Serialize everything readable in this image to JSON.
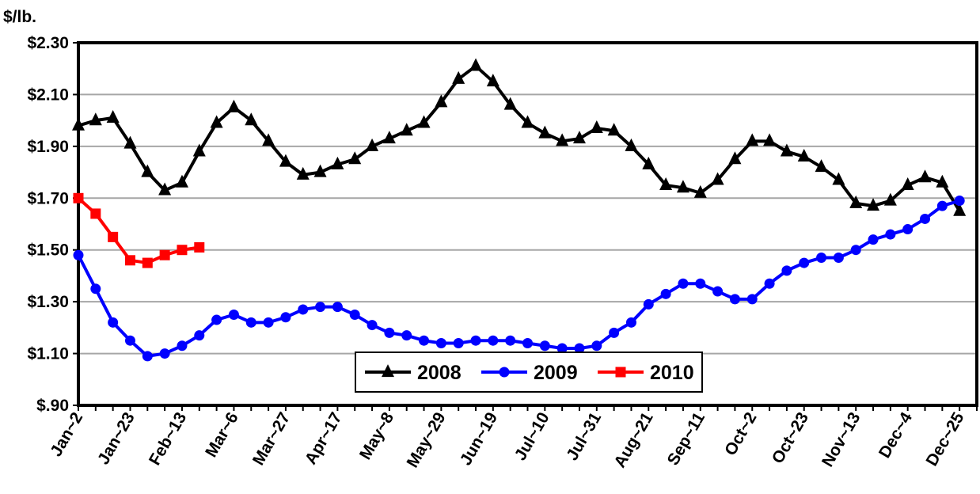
{
  "chart_data": {
    "type": "line",
    "ylabel": "$/lb.",
    "ylim": [
      0.9,
      2.3
    ],
    "yticks": [
      0.9,
      1.1,
      1.3,
      1.5,
      1.7,
      1.9,
      2.1,
      2.3
    ],
    "ytick_labels": [
      "$.90",
      "$1.10",
      "$1.30",
      "$1.50",
      "$1.70",
      "$1.90",
      "$2.10",
      "$2.30"
    ],
    "x_count": 52,
    "x_tick_labels": [
      "Jan~2",
      "Jan~23",
      "Feb~13",
      "Mar~6",
      "Mar~27",
      "Apr~17",
      "May~8",
      "May~29",
      "Jun~19",
      "Jul~10",
      "Jul~31",
      "Aug~21",
      "Sep~11",
      "Oct~2",
      "Oct~23",
      "Nov~13",
      "Dec~4",
      "Dec~25"
    ],
    "grid": true,
    "legend_position": "bottom-center",
    "series": [
      {
        "name": "2008",
        "color": "#000000",
        "marker": "triangle",
        "values": [
          1.98,
          2.0,
          2.01,
          1.91,
          1.8,
          1.73,
          1.76,
          1.88,
          1.99,
          2.05,
          2.0,
          1.92,
          1.84,
          1.79,
          1.8,
          1.83,
          1.85,
          1.9,
          1.93,
          1.96,
          1.99,
          2.07,
          2.16,
          2.21,
          2.15,
          2.06,
          1.99,
          1.95,
          1.92,
          1.93,
          1.97,
          1.96,
          1.9,
          1.83,
          1.75,
          1.74,
          1.72,
          1.77,
          1.85,
          1.92,
          1.92,
          1.88,
          1.86,
          1.82,
          1.77,
          1.68,
          1.67,
          1.69,
          1.75,
          1.78,
          1.76,
          1.65
        ]
      },
      {
        "name": "2009",
        "color": "#0000ff",
        "marker": "circle",
        "values": [
          1.48,
          1.35,
          1.22,
          1.15,
          1.09,
          1.1,
          1.13,
          1.17,
          1.23,
          1.25,
          1.22,
          1.22,
          1.24,
          1.27,
          1.28,
          1.28,
          1.25,
          1.21,
          1.18,
          1.17,
          1.15,
          1.14,
          1.14,
          1.15,
          1.15,
          1.15,
          1.14,
          1.13,
          1.12,
          1.12,
          1.13,
          1.18,
          1.22,
          1.29,
          1.33,
          1.37,
          1.37,
          1.34,
          1.31,
          1.31,
          1.37,
          1.42,
          1.45,
          1.47,
          1.47,
          1.5,
          1.54,
          1.56,
          1.58,
          1.62,
          1.67,
          1.69
        ]
      },
      {
        "name": "2010",
        "color": "#ff0000",
        "marker": "square",
        "values": [
          1.7,
          1.64,
          1.55,
          1.46,
          1.45,
          1.48,
          1.5,
          1.51
        ]
      }
    ]
  }
}
